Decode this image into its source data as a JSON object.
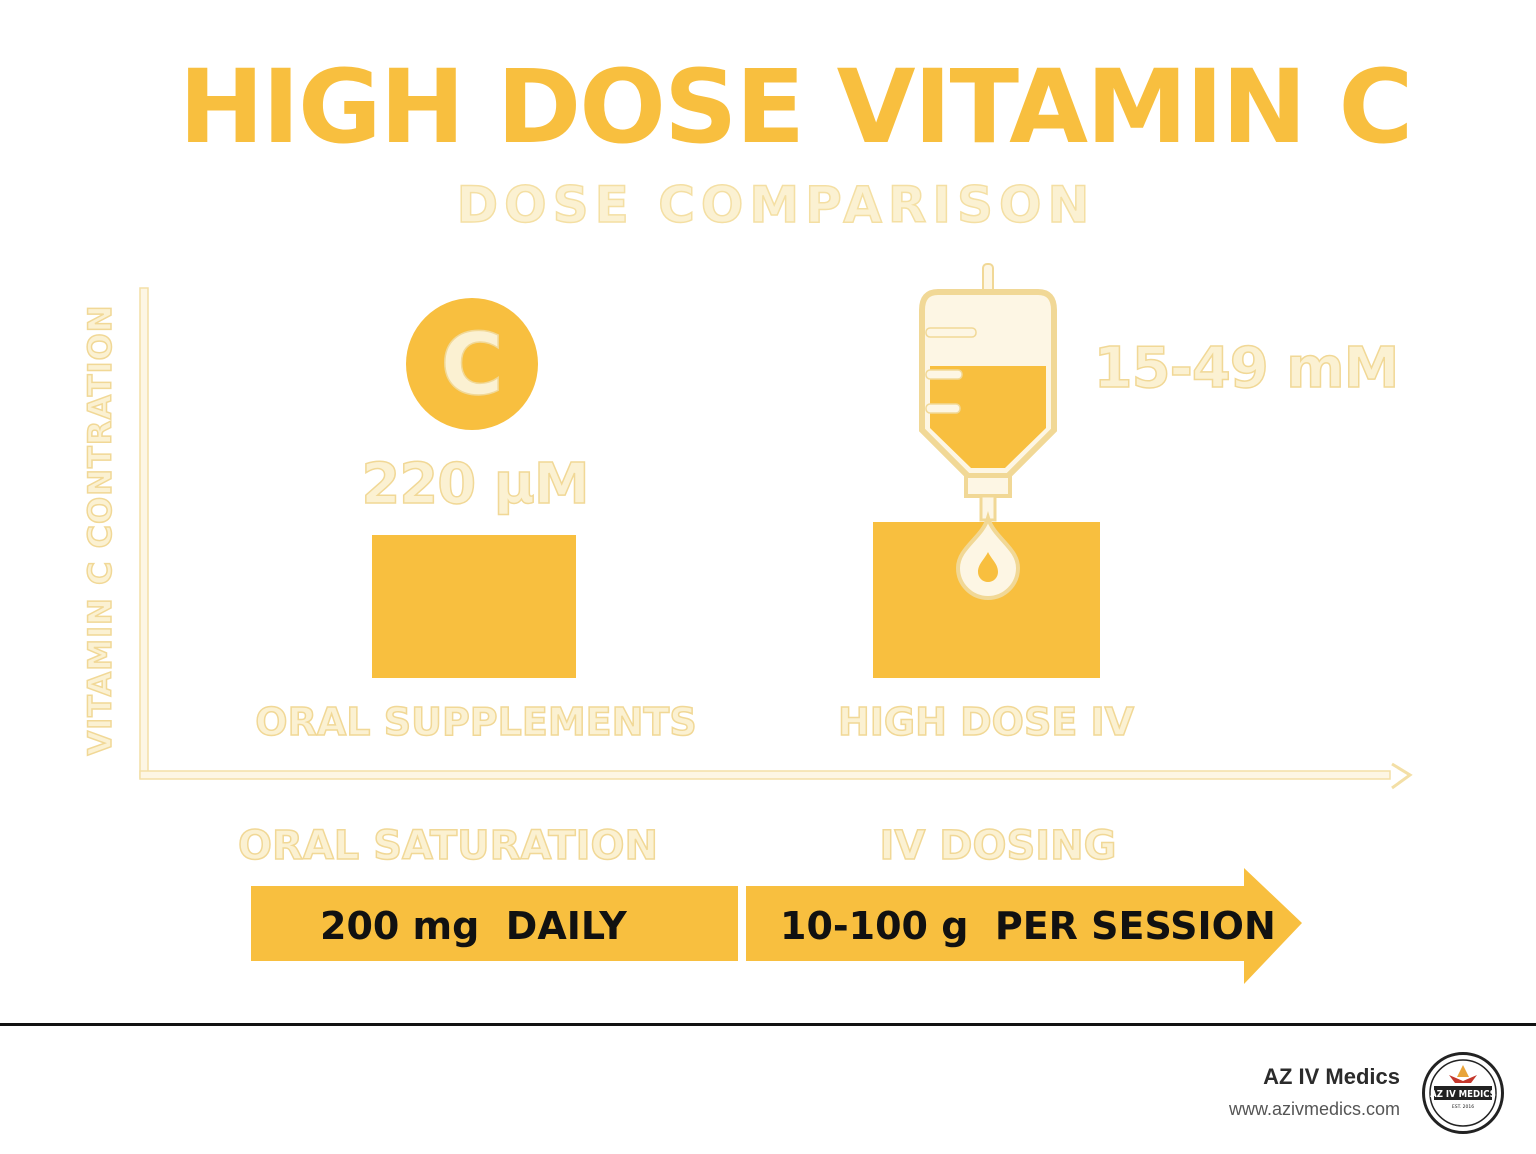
{
  "title": "HIGH DOSE VITAMIN C",
  "subtitle": "DOSE COMPARISON",
  "chart_data": {
    "type": "bar",
    "ylabel": "VITAMIN C CONTRATION",
    "categories": [
      "ORAL SUPPLEMENTS",
      "HIGH DOSE IV"
    ],
    "value_labels": [
      "220 µM",
      "15-49 mM"
    ],
    "c_badge": "C",
    "colors": {
      "accent": "#f8bf3f",
      "ghost_fill": "#fbf1d2",
      "ghost_stroke": "#f1d896"
    }
  },
  "dosing": {
    "oral_stage": "ORAL SATURATION",
    "iv_stage": "IV DOSING",
    "oral_dose": "200 mg  DAILY",
    "iv_dose": "10-100 g  PER SESSION"
  },
  "footer": {
    "brand_name": "AZ IV Medics",
    "brand_url": "www.azivmedics.com",
    "logo_text": "AZ IV MEDICS",
    "logo_est": "EST. 2016"
  }
}
